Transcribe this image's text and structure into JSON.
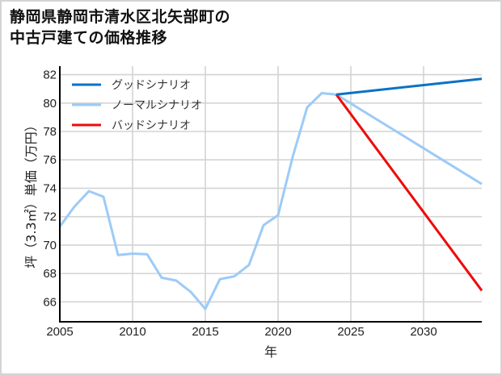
{
  "header": {
    "title_line1": "静岡県静岡市清水区北矢部町の",
    "title_line2": "中古戸建ての価格推移"
  },
  "colors": {
    "good": "#0a72c6",
    "normal": "#9ccbf7",
    "bad": "#ee0b0b",
    "grid": "#d3d3d3",
    "axis": "#000000",
    "frame_border": "#d4d4d4"
  },
  "chart_data": {
    "type": "line",
    "title": "静岡県静岡市清水区北矢部町の中古戸建ての価格推移",
    "xlabel": "年",
    "ylabel": "坪（3.3㎡）単価（万円）",
    "xlim": [
      2005,
      2034
    ],
    "ylim": [
      64.6,
      82.6
    ],
    "xticks": [
      2005,
      2010,
      2015,
      2020,
      2025,
      2030
    ],
    "yticks": [
      66,
      68,
      70,
      72,
      74,
      76,
      78,
      80,
      82
    ],
    "grid": true,
    "legend_position": "upper left",
    "series": [
      {
        "name": "グッドシナリオ",
        "color": "#0a72c6",
        "x": [
          2024,
          2034
        ],
        "values": [
          80.6,
          81.7
        ]
      },
      {
        "name": "ノーマルシナリオ",
        "color": "#9ccbf7",
        "x": [
          2005,
          2006,
          2007,
          2008,
          2009,
          2010,
          2011,
          2012,
          2013,
          2014,
          2015,
          2016,
          2017,
          2018,
          2019,
          2020,
          2021,
          2022,
          2023,
          2024,
          2034
        ],
        "values": [
          71.3,
          72.7,
          73.8,
          73.4,
          69.3,
          69.4,
          69.35,
          67.7,
          67.5,
          66.7,
          65.5,
          67.6,
          67.8,
          68.6,
          71.4,
          72.1,
          76.2,
          79.7,
          80.7,
          80.6,
          74.3
        ]
      },
      {
        "name": "バッドシナリオ",
        "color": "#ee0b0b",
        "x": [
          2024,
          2034
        ],
        "values": [
          80.6,
          66.8
        ]
      }
    ]
  }
}
